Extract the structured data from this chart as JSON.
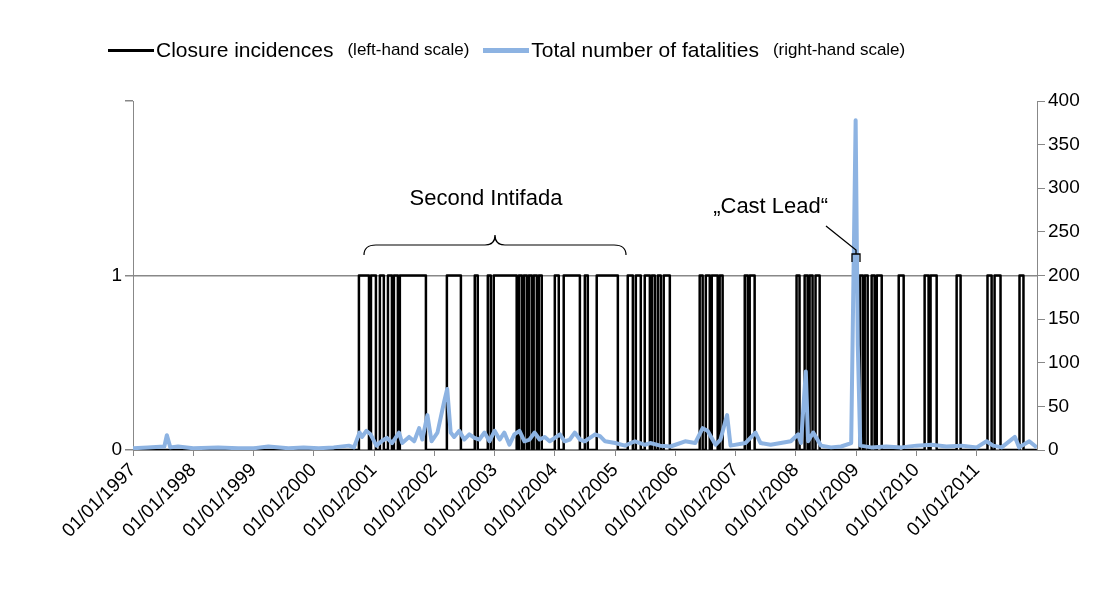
{
  "chart_data": {
    "type": "line",
    "legend": "top",
    "grid": "y",
    "xlim": [
      "1997-01-01",
      "2012-01-01"
    ],
    "xticks": [
      {
        "value": "1997-01-01",
        "label": "01/01/1997"
      },
      {
        "value": "1998-01-01",
        "label": "01/01/1998"
      },
      {
        "value": "1999-01-01",
        "label": "01/01/1999"
      },
      {
        "value": "2000-01-01",
        "label": "01/01/2000"
      },
      {
        "value": "2001-01-01",
        "label": "01/01/2001"
      },
      {
        "value": "2002-01-01",
        "label": "01/01/2002"
      },
      {
        "value": "2003-01-01",
        "label": "01/01/2003"
      },
      {
        "value": "2004-01-01",
        "label": "01/01/2004"
      },
      {
        "value": "2005-01-01",
        "label": "01/01/2005"
      },
      {
        "value": "2006-01-01",
        "label": "01/01/2006"
      },
      {
        "value": "2007-01-01",
        "label": "01/01/2007"
      },
      {
        "value": "2008-01-01",
        "label": "01/01/2008"
      },
      {
        "value": "2009-01-01",
        "label": "01/01/2009"
      },
      {
        "value": "2010-01-01",
        "label": "01/01/2010"
      },
      {
        "value": "2011-01-01",
        "label": "01/01/2011"
      }
    ],
    "ylim": [
      0,
      2
    ],
    "yticks": [
      0,
      1,
      {
        "value": 2,
        "label": null
      }
    ],
    "y2lim": [
      0,
      400
    ],
    "y2ticks": [
      0,
      50,
      100,
      150,
      200,
      250,
      300,
      350,
      400
    ],
    "series": [
      {
        "name": "Closure incidences",
        "type": "step",
        "color": "#000000",
        "x": [
          "1997-01-01",
          "2000-10-01",
          "2000-12-01",
          "2000-12-13",
          "2001-01-12",
          "2001-02-05",
          "2001-03-01",
          "2001-03-26",
          "2001-04-19",
          "2001-05-01",
          "2001-05-25",
          "2001-06-06",
          "2001-11-11",
          "2002-03-18",
          "2002-06-11",
          "2002-09-03",
          "2002-09-21",
          "2002-11-21",
          "2002-12-09",
          "2002-12-27",
          "2003-05-15",
          "2003-05-28",
          "2003-06-15",
          "2003-06-27",
          "2003-07-15",
          "2003-07-27",
          "2003-08-14",
          "2003-08-26",
          "2003-09-14",
          "2003-09-26",
          "2003-10-14",
          "2004-01-01",
          "2004-01-25",
          "2004-02-24",
          "2004-06-01",
          "2004-07-01",
          "2004-07-19",
          "2004-09-11",
          "2005-01-17",
          "2005-03-18",
          "2005-04-18",
          "2005-05-06",
          "2005-06-05",
          "2005-06-29",
          "2005-07-30",
          "2005-08-11",
          "2005-08-29",
          "2005-09-16",
          "2005-10-04",
          "2005-10-22",
          "2005-11-28",
          "2006-05-28",
          "2006-06-15",
          "2006-07-04",
          "2006-07-28",
          "2006-08-09",
          "2006-09-14",
          "2006-09-26",
          "2006-10-14",
          "2007-02-25",
          "2007-03-15",
          "2007-03-27",
          "2007-04-26",
          "2008-01-05",
          "2008-01-23",
          "2008-02-23",
          "2008-03-12",
          "2008-03-24",
          "2008-04-11",
          "2008-04-29",
          "2008-05-24",
          "2009-01-22",
          "2009-02-09",
          "2009-02-21",
          "2009-03-11",
          "2009-04-04",
          "2009-04-22",
          "2009-05-05",
          "2009-06-04",
          "2009-09-15",
          "2009-10-15",
          "2010-02-19",
          "2010-03-15",
          "2010-03-27",
          "2010-05-03",
          "2010-09-01",
          "2010-09-25",
          "2011-03-07",
          "2011-04-01",
          "2011-04-19",
          "2011-05-25",
          "2011-09-17",
          "2011-10-11",
          "2011-12-31"
        ],
        "values": [
          0,
          1,
          0,
          1,
          0,
          1,
          0,
          1,
          0,
          1,
          0,
          1,
          0,
          1,
          0,
          1,
          0,
          1,
          0,
          1,
          0,
          1,
          0,
          1,
          0,
          1,
          0,
          1,
          0,
          1,
          0,
          1,
          0,
          1,
          0,
          1,
          0,
          1,
          0,
          1,
          0,
          1,
          0,
          1,
          0,
          1,
          0,
          1,
          0,
          1,
          0,
          1,
          0,
          1,
          0,
          1,
          0,
          1,
          0,
          1,
          0,
          1,
          0,
          1,
          0,
          1,
          0,
          1,
          0,
          1,
          0,
          1,
          0,
          1,
          0,
          1,
          0,
          1,
          0,
          1,
          0,
          1,
          0,
          1,
          0,
          1,
          0,
          1,
          0,
          1,
          0,
          1,
          0,
          0
        ]
      },
      {
        "name": "Total number of fatalities",
        "type": "line",
        "axis": "y2",
        "color": "#8db3e2",
        "x": [
          "1997-01-01",
          "1997-04-01",
          "1997-07-10",
          "1997-07-25",
          "1997-08-15",
          "1997-10-01",
          "1998-01-01",
          "1998-06-01",
          "1998-10-01",
          "1999-01-01",
          "1999-04-01",
          "1999-08-01",
          "1999-11-01",
          "2000-02-01",
          "2000-05-01",
          "2000-08-01",
          "2000-09-01",
          "2000-10-05",
          "2000-10-20",
          "2000-11-15",
          "2000-12-10",
          "2001-01-15",
          "2001-02-15",
          "2001-03-20",
          "2001-04-20",
          "2001-06-01",
          "2001-06-20",
          "2001-08-01",
          "2001-09-01",
          "2001-10-01",
          "2001-10-20",
          "2001-11-20",
          "2001-12-15",
          "2002-01-20",
          "2002-03-01",
          "2002-03-20",
          "2002-04-10",
          "2002-05-01",
          "2002-06-01",
          "2002-07-01",
          "2002-08-01",
          "2002-09-01",
          "2002-10-01",
          "2002-11-01",
          "2002-12-01",
          "2003-01-01",
          "2003-02-01",
          "2003-03-01",
          "2003-04-01",
          "2003-05-01",
          "2003-06-01",
          "2003-07-01",
          "2003-08-01",
          "2003-09-01",
          "2003-10-01",
          "2003-11-01",
          "2003-12-01",
          "2004-01-01",
          "2004-02-01",
          "2004-03-01",
          "2004-04-01",
          "2004-05-01",
          "2004-06-01",
          "2004-07-01",
          "2004-08-01",
          "2004-09-01",
          "2004-10-01",
          "2004-11-01",
          "2005-01-01",
          "2005-03-01",
          "2005-05-01",
          "2005-07-01",
          "2005-08-01",
          "2005-10-01",
          "2005-12-01",
          "2006-01-01",
          "2006-03-01",
          "2006-05-01",
          "2006-06-15",
          "2006-07-15",
          "2006-09-01",
          "2006-10-01",
          "2006-11-10",
          "2006-12-01",
          "2007-03-01",
          "2007-05-01",
          "2007-06-01",
          "2007-08-01",
          "2007-10-01",
          "2007-12-01",
          "2008-01-15",
          "2008-02-01",
          "2008-03-01",
          "2008-03-15",
          "2008-04-15",
          "2008-06-01",
          "2008-08-01",
          "2008-10-01",
          "2008-12-01",
          "2008-12-28",
          "2009-01-10",
          "2009-01-25",
          "2009-04-01",
          "2009-07-01",
          "2009-10-01",
          "2010-01-01",
          "2010-04-01",
          "2010-07-01",
          "2010-10-01",
          "2011-01-01",
          "2011-03-01",
          "2011-04-10",
          "2011-06-01",
          "2011-08-20",
          "2011-09-15",
          "2011-11-15",
          "2011-12-31"
        ],
        "values": [
          2,
          3,
          4,
          17,
          3,
          4,
          2,
          3,
          2,
          2,
          4,
          2,
          3,
          2,
          3,
          5,
          3,
          20,
          15,
          22,
          18,
          5,
          10,
          14,
          8,
          20,
          8,
          15,
          10,
          25,
          12,
          40,
          10,
          20,
          55,
          70,
          20,
          15,
          22,
          12,
          18,
          14,
          12,
          20,
          10,
          22,
          12,
          20,
          6,
          18,
          22,
          10,
          12,
          20,
          12,
          15,
          10,
          14,
          18,
          10,
          12,
          20,
          12,
          10,
          14,
          18,
          16,
          10,
          8,
          5,
          10,
          6,
          8,
          5,
          4,
          6,
          10,
          8,
          25,
          22,
          6,
          12,
          40,
          5,
          8,
          20,
          8,
          6,
          8,
          10,
          18,
          8,
          90,
          10,
          20,
          5,
          3,
          4,
          8,
          378,
          120,
          5,
          3,
          4,
          3,
          5,
          6,
          4,
          5,
          3,
          10,
          5,
          3,
          15,
          3,
          10,
          3
        ]
      }
    ],
    "annotations": [
      "(left-hand scale)",
      "(right-hand scale)",
      "Second Intifada",
      {
        "text": "„Cast Lead“",
        "x": "2008-12-28",
        "y": 1.13
      }
    ]
  }
}
